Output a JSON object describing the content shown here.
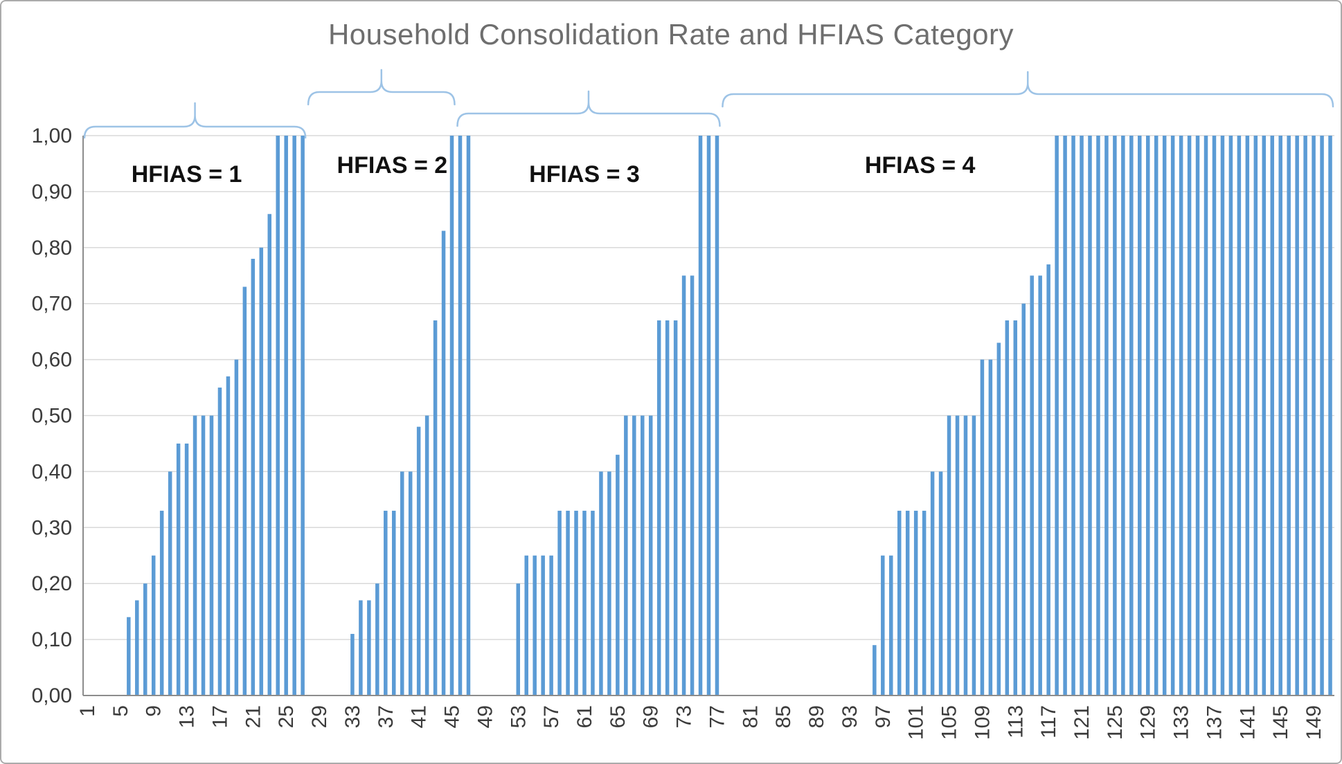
{
  "chart_data": {
    "type": "bar",
    "title": "Household Consolidation Rate and HFIAS Category",
    "xlabel": "",
    "ylabel": "",
    "ylim": [
      0,
      1
    ],
    "y_step": 0.1,
    "y_tick_labels": [
      "1,00",
      "0,90",
      "0,80",
      "0,70",
      "0,60",
      "0,50",
      "0,40",
      "0,30",
      "0,20",
      "0,10",
      "0,00"
    ],
    "x_tick_step": 4,
    "x_tick_labels": [
      "1",
      "5",
      "9",
      "13",
      "17",
      "21",
      "25",
      "29",
      "33",
      "37",
      "41",
      "45",
      "49",
      "53",
      "57",
      "61",
      "65",
      "69",
      "73",
      "77",
      "81",
      "85",
      "89",
      "93",
      "97",
      "101",
      "105",
      "109",
      "113",
      "117",
      "121",
      "125",
      "129",
      "133",
      "137",
      "141",
      "145",
      "149"
    ],
    "n_categories": 151,
    "grid": true,
    "legend": "none",
    "groups": [
      {
        "label": "HFIAS = 1",
        "start": 1,
        "end": 27
      },
      {
        "label": "HFIAS = 2",
        "start": 28,
        "end": 45
      },
      {
        "label": "HFIAS = 3",
        "start": 46,
        "end": 77
      },
      {
        "label": "HFIAS = 4",
        "start": 78,
        "end": 151
      }
    ],
    "values": [
      0,
      0,
      0,
      0,
      0,
      0.14,
      0.17,
      0.2,
      0.25,
      0.33,
      0.4,
      0.45,
      0.45,
      0.5,
      0.5,
      0.5,
      0.55,
      0.57,
      0.6,
      0.73,
      0.78,
      0.8,
      0.86,
      1,
      1,
      1,
      1,
      0,
      0,
      0,
      0,
      0,
      0.11,
      0.17,
      0.17,
      0.2,
      0.33,
      0.33,
      0.4,
      0.4,
      0.48,
      0.5,
      0.67,
      0.83,
      1,
      1,
      1,
      0,
      0,
      0,
      0,
      0,
      0.2,
      0.25,
      0.25,
      0.25,
      0.25,
      0.33,
      0.33,
      0.33,
      0.33,
      0.33,
      0.4,
      0.4,
      0.43,
      0.5,
      0.5,
      0.5,
      0.5,
      0.67,
      0.67,
      0.67,
      0.75,
      0.75,
      1,
      1,
      1,
      0,
      0,
      0,
      0,
      0,
      0,
      0,
      0,
      0,
      0,
      0,
      0,
      0,
      0,
      0,
      0,
      0,
      0,
      0.09,
      0.25,
      0.25,
      0.33,
      0.33,
      0.33,
      0.33,
      0.4,
      0.4,
      0.5,
      0.5,
      0.5,
      0.5,
      0.6,
      0.6,
      0.63,
      0.67,
      0.67,
      0.7,
      0.75,
      0.75,
      0.77,
      1,
      1,
      1,
      1,
      1,
      1,
      1,
      1,
      1,
      1,
      1,
      1,
      1,
      1,
      1,
      1,
      1,
      1,
      1,
      1,
      1,
      1,
      1,
      1,
      1,
      1,
      1,
      1,
      1,
      1,
      1,
      1,
      1,
      1
    ]
  },
  "colors": {
    "bar": "#5B9BD5",
    "brace": "#9DC3E6",
    "gridline": "#D9D9D9",
    "axis": "#8C8C8C",
    "title": "#6E6E6E",
    "tick_label": "#3B3B3B",
    "group_label": "#111111",
    "frame": "#ABABAB"
  }
}
